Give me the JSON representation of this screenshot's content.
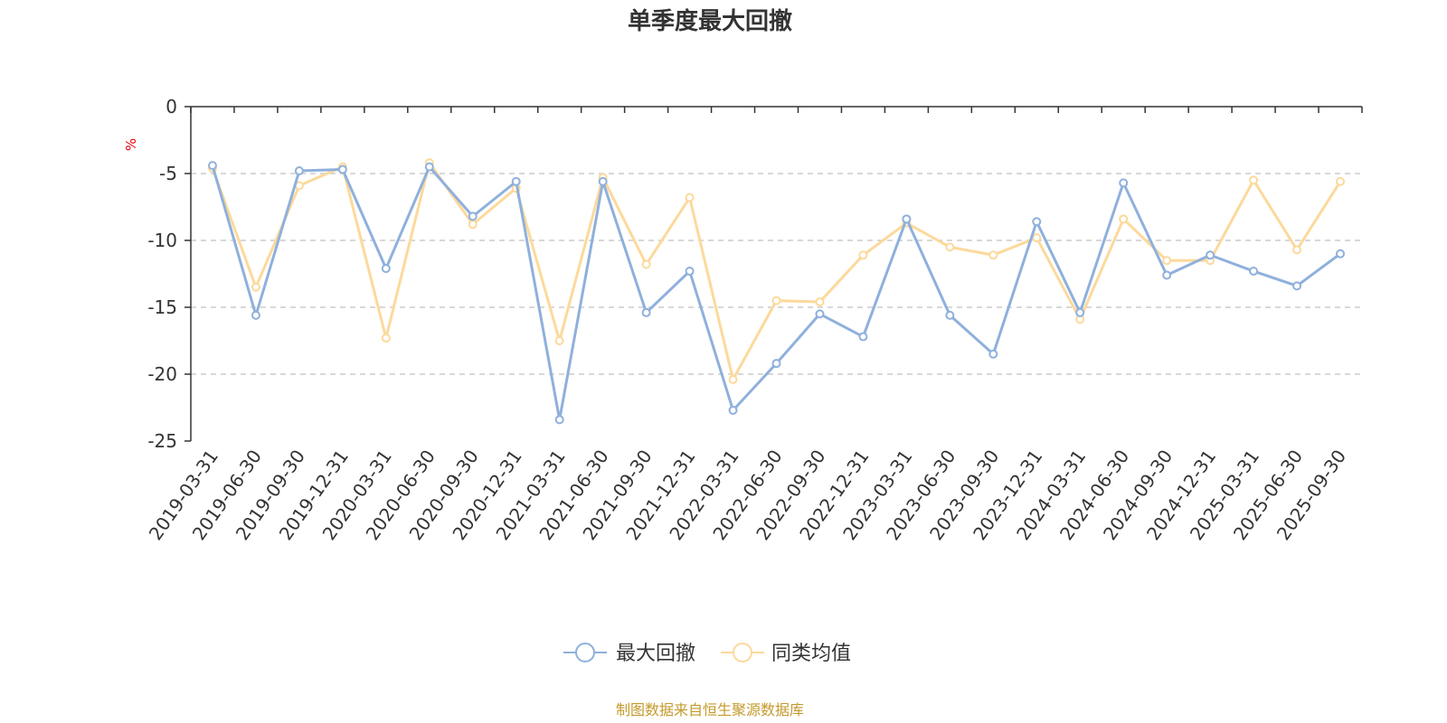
{
  "chart_data": {
    "type": "line",
    "title": "单季度最大回撤",
    "y_unit": "%",
    "ylim": [
      -25,
      0
    ],
    "yticks": [
      0,
      -5,
      -10,
      -15,
      -20,
      -25
    ],
    "grid": "horizontal dashed",
    "legend_position": "bottom-center",
    "categories": [
      "2019-03-31",
      "2019-06-30",
      "2019-09-30",
      "2019-12-31",
      "2020-03-31",
      "2020-06-30",
      "2020-09-30",
      "2020-12-31",
      "2021-03-31",
      "2021-06-30",
      "2021-09-30",
      "2021-12-31",
      "2022-03-31",
      "2022-06-30",
      "2022-09-30",
      "2022-12-31",
      "2023-03-31",
      "2023-06-30",
      "2023-09-30",
      "2023-12-31",
      "2024-03-31",
      "2024-06-30",
      "2024-09-30",
      "2024-12-31",
      "2025-03-31",
      "2025-06-30",
      "2025-09-30"
    ],
    "series": [
      {
        "name": "最大回撤",
        "color": "#8fb0dc",
        "values": [
          -4.4,
          -15.6,
          -4.8,
          -4.7,
          -12.1,
          -4.5,
          -8.2,
          -5.6,
          -23.4,
          -5.6,
          -15.4,
          -12.3,
          -22.7,
          -19.2,
          -15.5,
          -17.2,
          -8.4,
          -15.6,
          -18.5,
          -8.6,
          -15.4,
          -5.7,
          -12.6,
          -11.1,
          -12.3,
          -13.4,
          -11.0
        ]
      },
      {
        "name": "同类均值",
        "color": "#fcd99b",
        "values": [
          -4.6,
          -13.5,
          -5.9,
          -4.5,
          -17.3,
          -4.2,
          -8.8,
          -6.1,
          -17.5,
          -5.3,
          -11.8,
          -6.8,
          -20.4,
          -14.5,
          -14.6,
          -11.1,
          -8.7,
          -10.5,
          -11.1,
          -9.8,
          -15.9,
          -8.4,
          -11.5,
          -11.5,
          -5.5,
          -10.7,
          -5.6
        ]
      }
    ]
  },
  "source_note": "制图数据来自恒生聚源数据库"
}
